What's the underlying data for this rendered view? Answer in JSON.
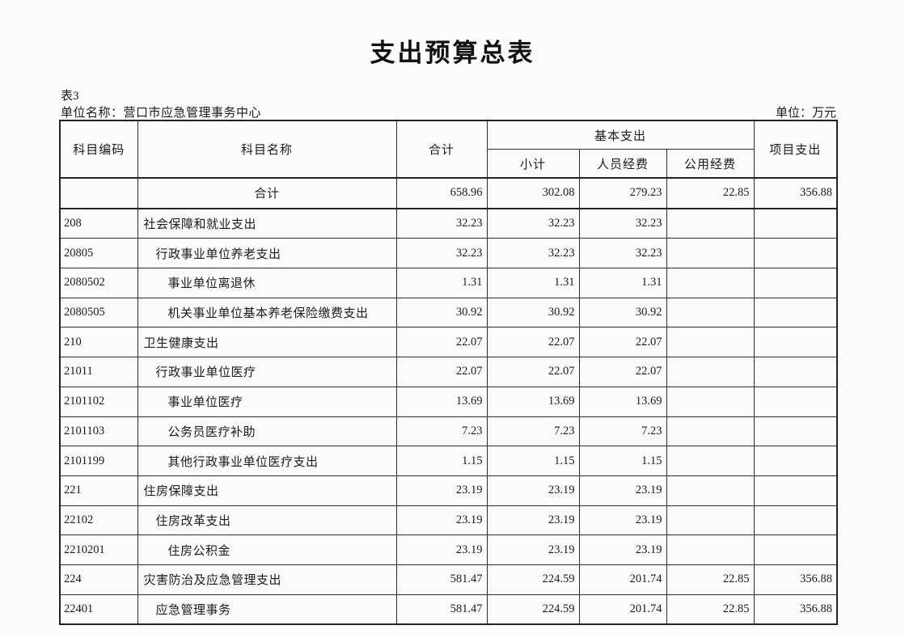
{
  "page": {
    "title": "支出预算总表",
    "table_label": "表3",
    "unit_name_label": "单位名称：",
    "unit_name": "营口市应急管理事务中心",
    "unit_label": "单位：万元"
  },
  "table": {
    "headers": {
      "code": "科目编码",
      "name": "科目名称",
      "total": "合计",
      "basic_group": "基本支出",
      "subtotal": "小计",
      "personnel": "人员经费",
      "public": "公用经费",
      "project": "项目支出"
    },
    "rows": [
      {
        "code": "",
        "name": "合计",
        "indent": "center",
        "total": "658.96",
        "subtotal": "302.08",
        "personnel": "279.23",
        "public": "22.85",
        "project": "356.88"
      },
      {
        "code": "208",
        "name": "社会保障和就业支出",
        "indent": 0,
        "total": "32.23",
        "subtotal": "32.23",
        "personnel": "32.23",
        "public": "",
        "project": ""
      },
      {
        "code": "20805",
        "name": "行政事业单位养老支出",
        "indent": 1,
        "total": "32.23",
        "subtotal": "32.23",
        "personnel": "32.23",
        "public": "",
        "project": ""
      },
      {
        "code": "2080502",
        "name": "事业单位离退休",
        "indent": 2,
        "total": "1.31",
        "subtotal": "1.31",
        "personnel": "1.31",
        "public": "",
        "project": ""
      },
      {
        "code": "2080505",
        "name": "机关事业单位基本养老保险缴费支出",
        "indent": 2,
        "total": "30.92",
        "subtotal": "30.92",
        "personnel": "30.92",
        "public": "",
        "project": ""
      },
      {
        "code": "210",
        "name": "卫生健康支出",
        "indent": 0,
        "total": "22.07",
        "subtotal": "22.07",
        "personnel": "22.07",
        "public": "",
        "project": ""
      },
      {
        "code": "21011",
        "name": "行政事业单位医疗",
        "indent": 1,
        "total": "22.07",
        "subtotal": "22.07",
        "personnel": "22.07",
        "public": "",
        "project": ""
      },
      {
        "code": "2101102",
        "name": "事业单位医疗",
        "indent": 2,
        "total": "13.69",
        "subtotal": "13.69",
        "personnel": "13.69",
        "public": "",
        "project": ""
      },
      {
        "code": "2101103",
        "name": "公务员医疗补助",
        "indent": 2,
        "total": "7.23",
        "subtotal": "7.23",
        "personnel": "7.23",
        "public": "",
        "project": ""
      },
      {
        "code": "2101199",
        "name": "其他行政事业单位医疗支出",
        "indent": 2,
        "total": "1.15",
        "subtotal": "1.15",
        "personnel": "1.15",
        "public": "",
        "project": ""
      },
      {
        "code": "221",
        "name": "住房保障支出",
        "indent": 0,
        "total": "23.19",
        "subtotal": "23.19",
        "personnel": "23.19",
        "public": "",
        "project": ""
      },
      {
        "code": "22102",
        "name": "住房改革支出",
        "indent": 1,
        "total": "23.19",
        "subtotal": "23.19",
        "personnel": "23.19",
        "public": "",
        "project": ""
      },
      {
        "code": "2210201",
        "name": "住房公积金",
        "indent": 2,
        "total": "23.19",
        "subtotal": "23.19",
        "personnel": "23.19",
        "public": "",
        "project": ""
      },
      {
        "code": "224",
        "name": "灾害防治及应急管理支出",
        "indent": 0,
        "total": "581.47",
        "subtotal": "224.59",
        "personnel": "201.74",
        "public": "22.85",
        "project": "356.88"
      },
      {
        "code": "22401",
        "name": "应急管理事务",
        "indent": 1,
        "total": "581.47",
        "subtotal": "224.59",
        "personnel": "201.74",
        "public": "22.85",
        "project": "356.88"
      }
    ]
  }
}
